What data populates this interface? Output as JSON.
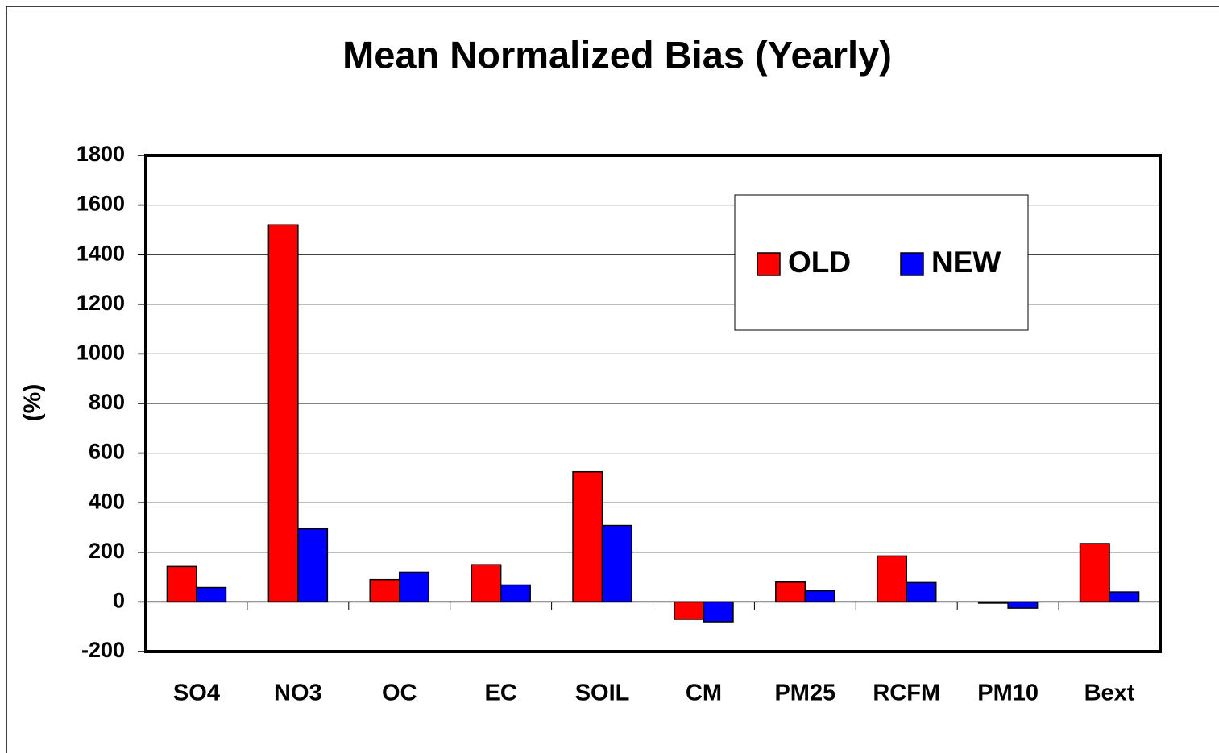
{
  "chart_data": {
    "type": "bar",
    "title": "Mean Normalized Bias (Yearly)",
    "y_label": "(%)",
    "categories": [
      "SO4",
      "NO3",
      "OC",
      "EC",
      "SOIL",
      "CM",
      "PM25",
      "RCFM",
      "PM10",
      "Bext"
    ],
    "series": [
      {
        "name": "OLD",
        "color": "#ff0000",
        "values": [
          143,
          1520,
          90,
          150,
          525,
          -70,
          80,
          185,
          -5,
          235
        ]
      },
      {
        "name": "NEW",
        "color": "#0000ff",
        "values": [
          58,
          295,
          120,
          68,
          308,
          -80,
          45,
          78,
          -25,
          40
        ]
      }
    ],
    "ylim": [
      -200,
      1800
    ],
    "yticks": [
      -200,
      0,
      200,
      400,
      600,
      800,
      1000,
      1200,
      1400,
      1600,
      1800
    ],
    "grid": true,
    "legend": "upper right"
  }
}
